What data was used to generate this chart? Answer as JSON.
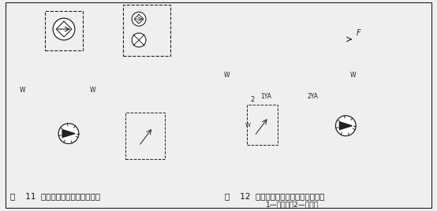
{
  "bg_color": "#efefef",
  "line_color": "#222222",
  "text_color": "#111111",
  "fig_width": 5.54,
  "fig_height": 2.68,
  "caption1": "图    11  采用液控单向阀的保压回路",
  "caption2": "图    12  采用三位四通电磁阀的保压回路",
  "caption3": "1—液压泵；2—溢流阀",
  "label_1ya": "1YA",
  "label_2ya": "2YA",
  "label_2": "2"
}
